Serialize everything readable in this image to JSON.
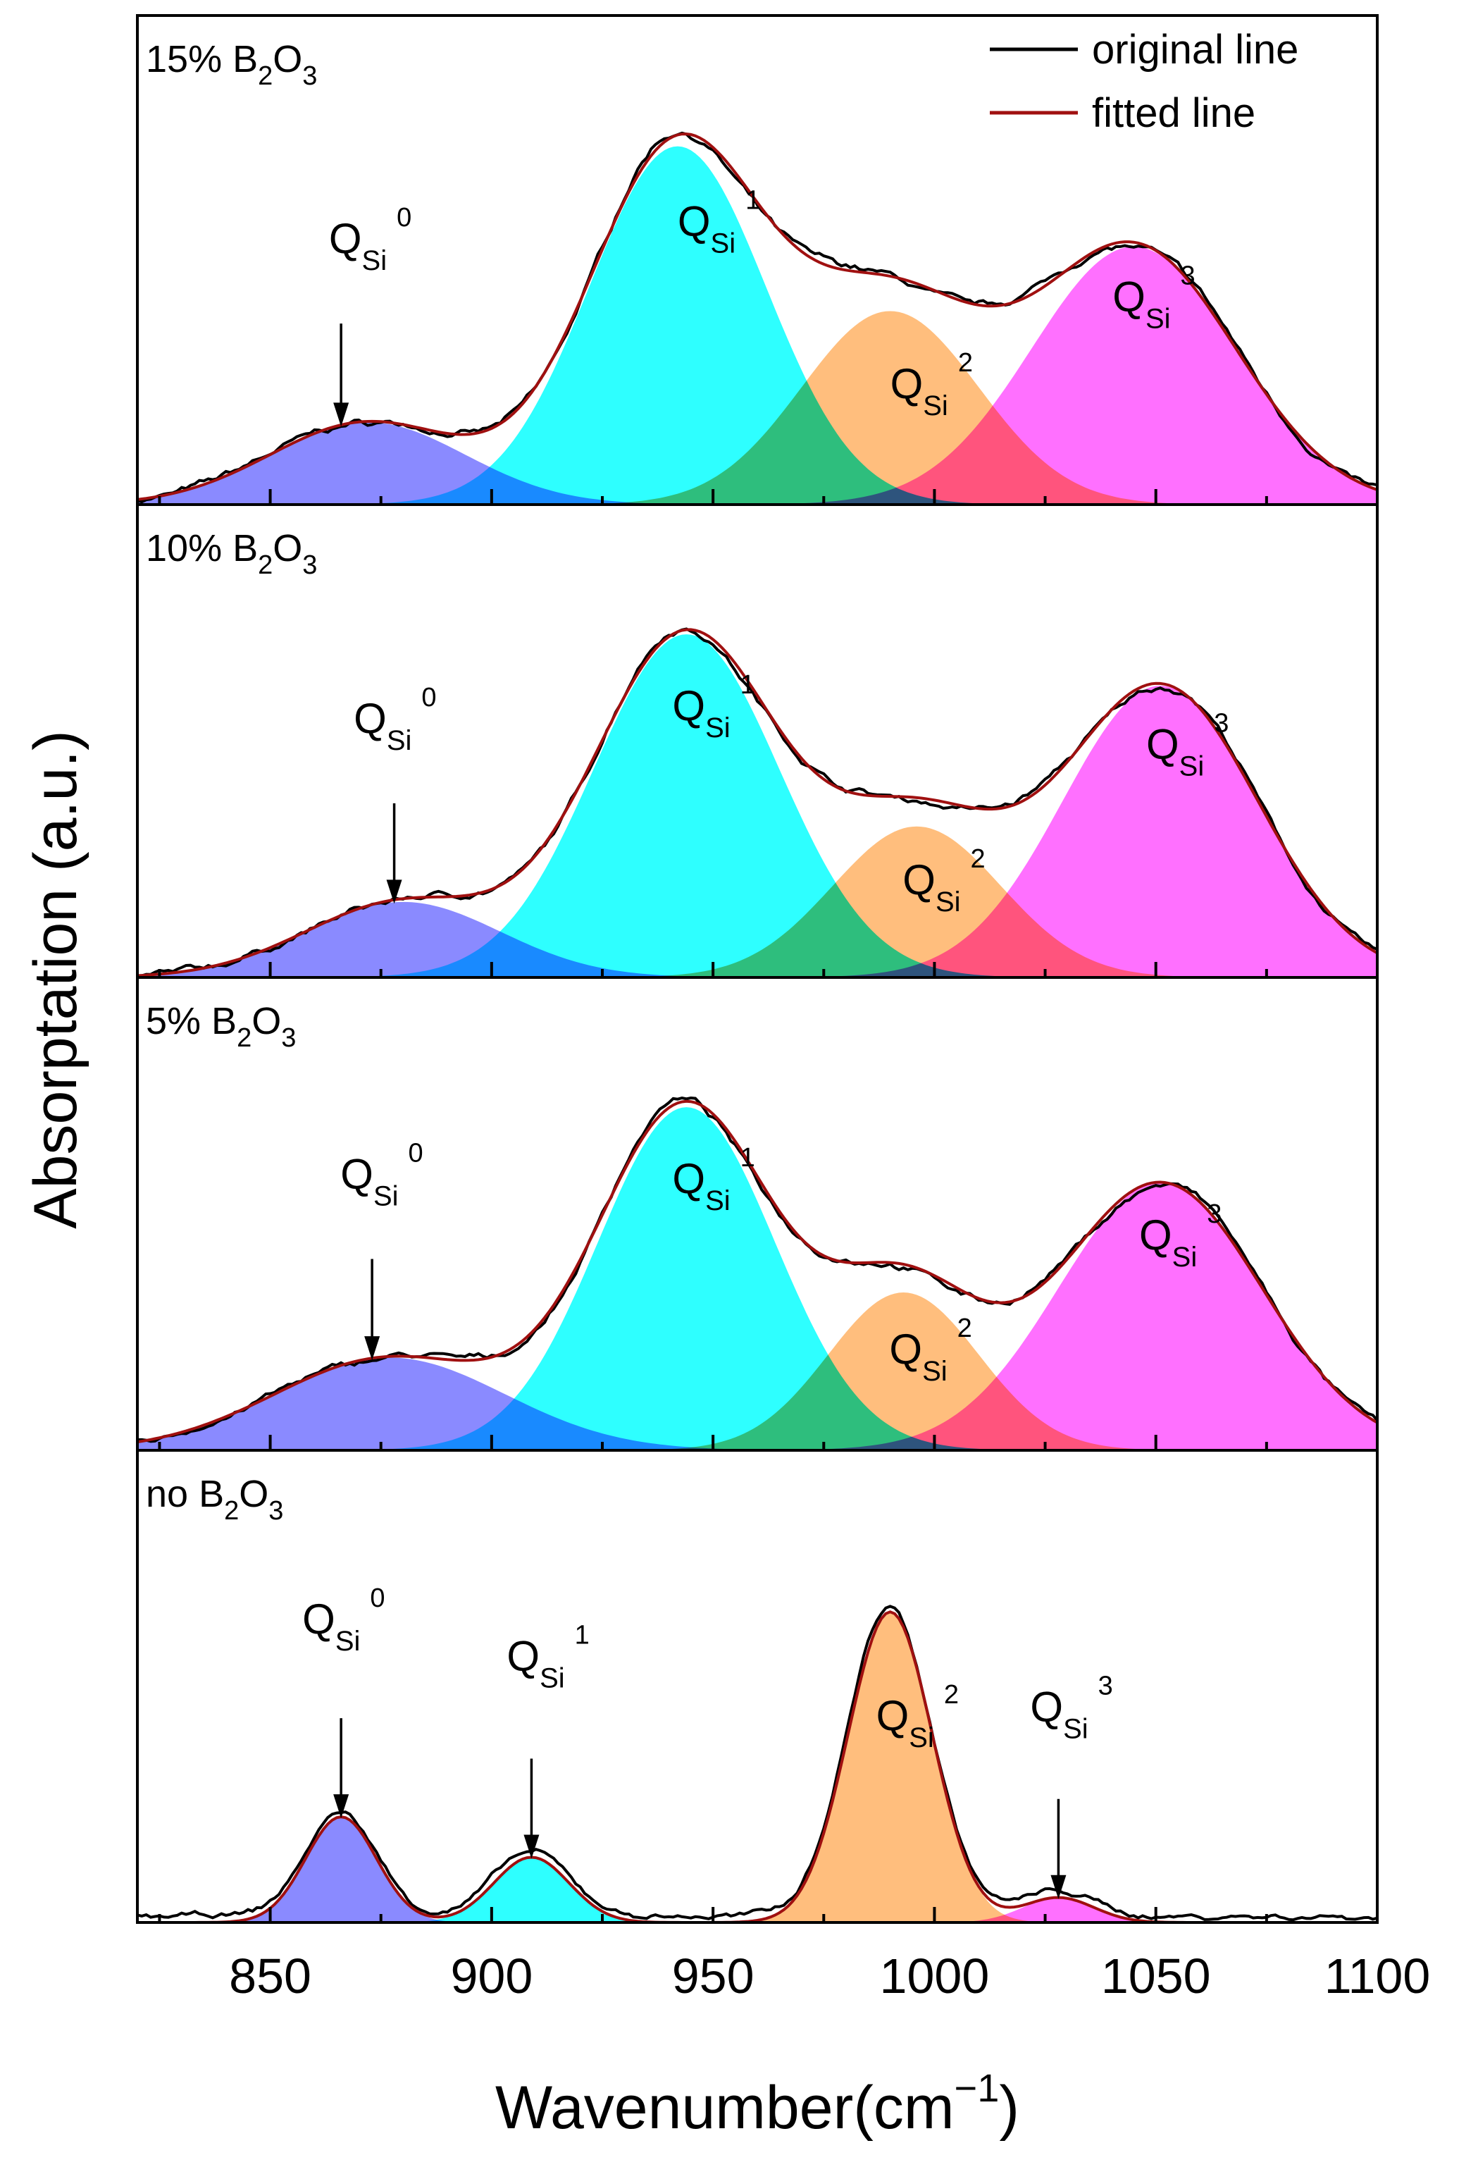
{
  "chart_data": {
    "type": "area",
    "title": "",
    "xlabel": "Wavenumber(cm",
    "xlabel_exponent": "−1",
    "xlabel_close": ")",
    "ylabel": "Absorptation (a.u.)",
    "xlim": [
      820,
      1100
    ],
    "xticks": [
      850,
      900,
      950,
      1000,
      1050,
      1100
    ],
    "tick_labels": [
      "850",
      "900",
      "950",
      "1000",
      "1050",
      "1100"
    ],
    "legend": {
      "position": "top-right",
      "entries": [
        {
          "label": "original line",
          "color": "#000000"
        },
        {
          "label": "fitted line",
          "color": "#a01010"
        }
      ]
    },
    "peak_colors": {
      "Q0": "#7070ff",
      "Q1": "#00ffff",
      "Q2": "#ffb060",
      "Q3": "#ff50ff"
    },
    "panels": [
      {
        "label_prefix": "15% B",
        "label_mid": "O",
        "label_sub1": "2",
        "label_sub2": "3",
        "ymax": 1.07,
        "peaks": [
          {
            "name": "Q0",
            "label": "Q",
            "sub": "Si",
            "sup": "0",
            "center": 872,
            "height": 0.23,
            "width": 22
          },
          {
            "name": "Q1",
            "label": "Q",
            "sub": "Si",
            "sup": "1",
            "center": 942,
            "height": 1.0,
            "width": 20
          },
          {
            "name": "Q2",
            "label": "Q",
            "sub": "Si",
            "sup": "2",
            "center": 990,
            "height": 0.54,
            "width": 20
          },
          {
            "name": "Q3",
            "label": "Q",
            "sub": "Si",
            "sup": "3",
            "center": 1045,
            "height": 0.72,
            "width": 23
          }
        ],
        "arrow": {
          "peak": "Q0",
          "x": 866,
          "label_x": 868
        }
      },
      {
        "label_prefix": "10% B",
        "label_mid": "O",
        "label_sub1": "2",
        "label_sub2": "3",
        "ymax": 1.07,
        "peaks": [
          {
            "name": "Q0",
            "label": "Q",
            "sub": "Si",
            "sup": "0",
            "center": 880,
            "height": 0.22,
            "width": 22
          },
          {
            "name": "Q1",
            "label": "Q",
            "sub": "Si",
            "sup": "1",
            "center": 944,
            "height": 1.0,
            "width": 21
          },
          {
            "name": "Q2",
            "label": "Q",
            "sub": "Si",
            "sup": "2",
            "center": 996,
            "height": 0.44,
            "width": 19
          },
          {
            "name": "Q3",
            "label": "Q",
            "sub": "Si",
            "sup": "3",
            "center": 1051,
            "height": 0.85,
            "width": 22
          }
        ],
        "arrow": {
          "peak": "Q0",
          "x": 878,
          "label_x": 879
        }
      },
      {
        "label_prefix": "5% B",
        "label_mid": "O",
        "label_sub1": "2",
        "label_sub2": "3",
        "ymax": 1.07,
        "peaks": [
          {
            "name": "Q0",
            "label": "Q",
            "sub": "Si",
            "sup": "0",
            "center": 877,
            "height": 0.27,
            "width": 26
          },
          {
            "name": "Q1",
            "label": "Q",
            "sub": "Si",
            "sup": "1",
            "center": 944,
            "height": 1.0,
            "width": 20
          },
          {
            "name": "Q2",
            "label": "Q",
            "sub": "Si",
            "sup": "2",
            "center": 993,
            "height": 0.46,
            "width": 17
          },
          {
            "name": "Q3",
            "label": "Q",
            "sub": "Si",
            "sup": "3",
            "center": 1051,
            "height": 0.78,
            "width": 23
          }
        ],
        "arrow": {
          "peak": "Q0",
          "x": 873,
          "label_x": 874
        }
      },
      {
        "label_prefix": "no B",
        "label_mid": "O",
        "label_sub1": "2",
        "label_sub2": "3",
        "ymax": 1.18,
        "peaks": [
          {
            "name": "Q0",
            "label": "Q",
            "sub": "Si",
            "sup": "0",
            "center": 866,
            "height": 0.34,
            "width": 8
          },
          {
            "name": "Q1",
            "label": "Q",
            "sub": "Si",
            "sup": "1",
            "center": 909,
            "height": 0.21,
            "width": 8.5
          },
          {
            "name": "Q2",
            "label": "Q",
            "sub": "Si",
            "sup": "2",
            "center": 990,
            "height": 1.0,
            "width": 9.5
          },
          {
            "name": "Q3",
            "label": "Q",
            "sub": "Si",
            "sup": "3",
            "center": 1028,
            "height": 0.08,
            "width": 8
          }
        ],
        "arrows": [
          {
            "peak": "Q0",
            "x": 866,
            "label_x": 866
          },
          {
            "peak": "Q1",
            "x": 909,
            "label_x": 911
          },
          {
            "peak": "Q3",
            "x": 1028,
            "label_x": 1030
          }
        ]
      }
    ]
  }
}
